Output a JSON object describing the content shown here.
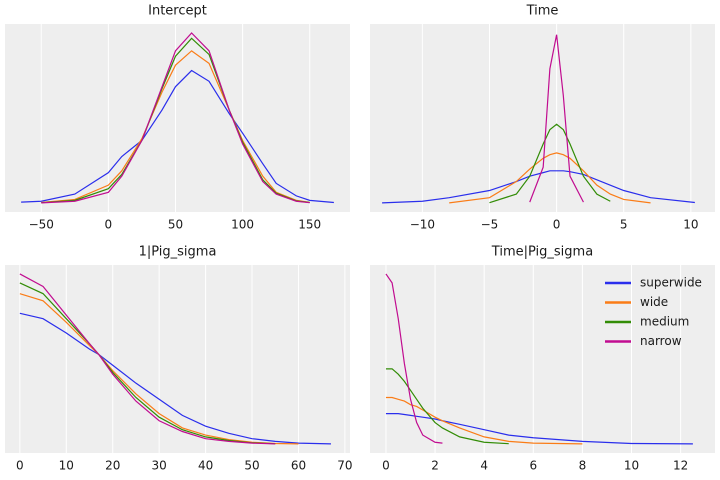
{
  "chart_data": [
    {
      "type": "line",
      "title": "Intercept",
      "x": [
        -65,
        -50,
        -25,
        0,
        10,
        25,
        40,
        50,
        62,
        75,
        90,
        100,
        115,
        125,
        140,
        150,
        168
      ],
      "xlim": [
        -77,
        180
      ],
      "ylim": [
        -0.05,
        1
      ],
      "xticks": [
        {
          "value": -50,
          "label": "−50"
        },
        0,
        50,
        100,
        150
      ],
      "grid": true,
      "series": [
        {
          "color": "#2a2eec",
          "values": [
            0.005,
            0.01,
            0.05,
            0.17,
            0.26,
            0.35,
            0.52,
            0.65,
            0.74,
            0.68,
            0.5,
            0.39,
            0.22,
            0.11,
            0.04,
            0.015,
            0.003
          ]
        },
        {
          "color": "#fa7c17",
          "values": [
            null,
            0.003,
            0.02,
            0.1,
            0.18,
            0.36,
            0.62,
            0.77,
            0.85,
            0.78,
            0.52,
            0.35,
            0.15,
            0.06,
            0.015,
            0.004,
            null
          ]
        },
        {
          "color": "#328c06",
          "values": [
            null,
            0.002,
            0.015,
            0.08,
            0.16,
            0.35,
            0.64,
            0.82,
            0.92,
            0.83,
            0.52,
            0.34,
            0.13,
            0.055,
            0.012,
            0.003,
            null
          ]
        },
        {
          "color": "#c10c90",
          "values": [
            null,
            0.001,
            0.01,
            0.06,
            0.15,
            0.35,
            0.65,
            0.85,
            0.95,
            0.85,
            0.52,
            0.33,
            0.12,
            0.05,
            0.01,
            0.002,
            null
          ]
        }
      ]
    },
    {
      "type": "line",
      "title": "Time",
      "x": [
        -13,
        -10,
        -8,
        -5,
        -3,
        -2,
        -1,
        -0.5,
        0,
        0.5,
        1,
        2,
        3,
        4,
        5,
        7,
        10.3
      ],
      "xlim": [
        -13.9,
        11.8
      ],
      "ylim": [
        -0.05,
        1
      ],
      "xticks": [
        {
          "value": -10,
          "label": "−10"
        },
        {
          "value": -5,
          "label": "−5"
        },
        0,
        5,
        10
      ],
      "grid": true,
      "series": [
        {
          "color": "#2a2eec",
          "values": [
            0.001,
            0.01,
            0.03,
            0.07,
            0.12,
            0.15,
            0.17,
            0.18,
            0.18,
            0.18,
            0.175,
            0.16,
            0.13,
            0.1,
            0.07,
            0.03,
            0.003
          ]
        },
        {
          "color": "#fa7c17",
          "values": [
            null,
            null,
            0.001,
            0.03,
            0.12,
            0.19,
            0.25,
            0.27,
            0.28,
            0.27,
            0.25,
            0.18,
            0.1,
            0.05,
            0.02,
            0.001,
            null
          ]
        },
        {
          "color": "#328c06",
          "values": [
            null,
            null,
            null,
            0.002,
            0.05,
            0.15,
            0.33,
            0.41,
            0.44,
            0.41,
            0.33,
            0.15,
            0.05,
            0.01,
            null,
            null,
            null
          ]
        },
        {
          "color": "#c10c90",
          "values": [
            null,
            null,
            null,
            null,
            null,
            0.005,
            0.2,
            0.75,
            0.94,
            0.6,
            0.15,
            0.005,
            null,
            null,
            null,
            null,
            null
          ]
        }
      ]
    },
    {
      "type": "line",
      "title": "1|Pig_sigma",
      "x": [
        0,
        5,
        10,
        15,
        17,
        20,
        25,
        30,
        35,
        40,
        45,
        50,
        55,
        60,
        67
      ],
      "xlim": [
        -3.2,
        71.1
      ],
      "ylim": [
        -0.05,
        1
      ],
      "xticks": [
        0,
        10,
        20,
        30,
        40,
        50,
        60,
        70
      ],
      "grid": true,
      "series": [
        {
          "color": "#2a2eec",
          "values": [
            0.73,
            0.7,
            0.62,
            0.53,
            0.5,
            0.44,
            0.34,
            0.25,
            0.16,
            0.1,
            0.06,
            0.03,
            0.015,
            0.005,
            0.001
          ]
        },
        {
          "color": "#fa7c17",
          "values": [
            0.84,
            0.8,
            0.68,
            0.55,
            0.5,
            0.41,
            0.28,
            0.17,
            0.09,
            0.05,
            0.025,
            0.01,
            0.003,
            0.001,
            null
          ]
        },
        {
          "color": "#328c06",
          "values": [
            0.9,
            0.84,
            0.7,
            0.56,
            0.5,
            0.4,
            0.26,
            0.15,
            0.08,
            0.04,
            0.02,
            0.007,
            0.002,
            null,
            null
          ]
        },
        {
          "color": "#c10c90",
          "values": [
            0.95,
            0.88,
            0.72,
            0.56,
            0.5,
            0.39,
            0.24,
            0.13,
            0.07,
            0.03,
            0.015,
            0.005,
            0.001,
            null,
            null
          ]
        }
      ]
    },
    {
      "type": "line",
      "title": "Time|Pig_sigma",
      "x": [
        0,
        0.25,
        0.5,
        0.75,
        1,
        1.25,
        1.5,
        2,
        2.3,
        3,
        4,
        5,
        6,
        8,
        10,
        12.5
      ],
      "xlim": [
        -0.65,
        13.4
      ],
      "ylim": [
        -0.05,
        1
      ],
      "xticks": [
        0,
        2,
        4,
        6,
        8,
        10,
        12
      ],
      "grid": true,
      "legend": "upper right",
      "series": [
        {
          "name": "superwide",
          "color": "#2a2eec",
          "values": [
            0.17,
            0.17,
            0.17,
            0.165,
            0.16,
            0.155,
            0.15,
            0.14,
            0.13,
            0.11,
            0.08,
            0.05,
            0.035,
            0.015,
            0.003,
            0.001
          ]
        },
        {
          "name": "wide",
          "color": "#fa7c17",
          "values": [
            0.26,
            0.26,
            0.25,
            0.24,
            0.22,
            0.21,
            0.19,
            0.15,
            0.13,
            0.09,
            0.04,
            0.015,
            0.005,
            0.001,
            null,
            null
          ]
        },
        {
          "name": "medium",
          "color": "#328c06",
          "values": [
            0.42,
            0.42,
            0.39,
            0.35,
            0.3,
            0.25,
            0.2,
            0.12,
            0.09,
            0.04,
            0.01,
            0.002,
            null,
            null,
            null,
            null
          ]
        },
        {
          "name": "narrow",
          "color": "#c10c90",
          "values": [
            0.95,
            0.9,
            0.7,
            0.45,
            0.25,
            0.12,
            0.05,
            0.01,
            0.005,
            null,
            null,
            null,
            null,
            null,
            null,
            null
          ]
        }
      ]
    }
  ]
}
